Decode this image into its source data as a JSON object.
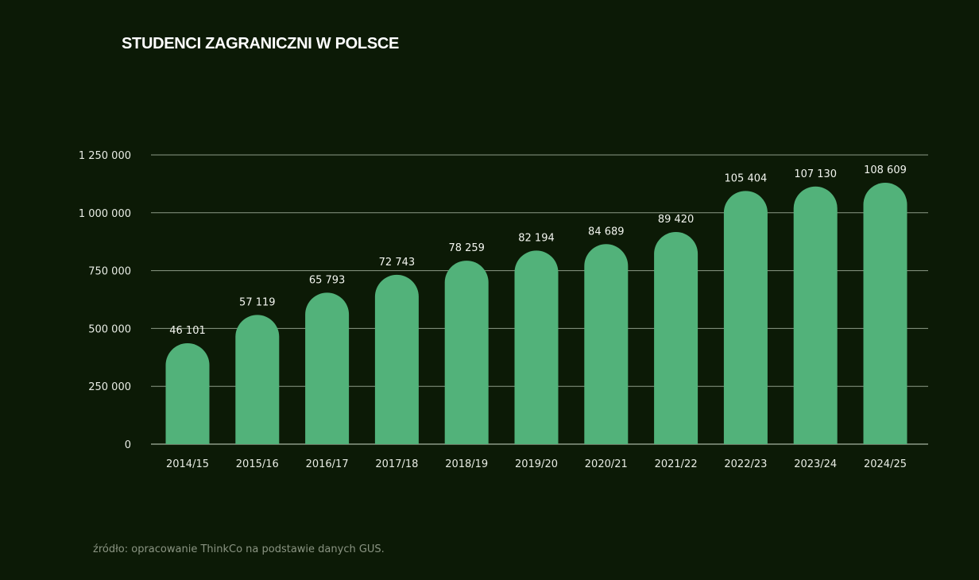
{
  "header": {
    "title": "STUDENCI ZAGRANICZNI W POLSCE"
  },
  "footer": {
    "source": "źródło: opracowanie ThinkCo na podstawie danych GUS."
  },
  "colors": {
    "background": "#0c1a06",
    "bar": "#52b27a",
    "grid": "#8c9a86",
    "text": "#e8ece4"
  },
  "chart_data": {
    "type": "bar",
    "title": "STUDENCI ZAGRANICZNI W POLSCE",
    "xlabel": "",
    "ylabel": "",
    "categories": [
      "2014/15",
      "2015/16",
      "2016/17",
      "2017/18",
      "2018/19",
      "2019/20",
      "2020/21",
      "2021/22",
      "2022/23",
      "2023/24",
      "2024/25"
    ],
    "values": [
      46101,
      57119,
      65793,
      72743,
      78259,
      82194,
      84689,
      89420,
      105404,
      107130,
      108609
    ],
    "value_labels": [
      "46 101",
      "57 119",
      "65 793",
      "72 743",
      "78 259",
      "82 194",
      "84 689",
      "89 420",
      "105 404",
      "107 130",
      "108 609"
    ],
    "yticks": [
      0,
      250000,
      500000,
      750000,
      1000000,
      1250000
    ],
    "ytick_labels": [
      "0",
      "250 000",
      "500 000",
      "750 000",
      "1 000 000",
      "1 250 000"
    ],
    "ylim": [
      0,
      1250000
    ],
    "grid": true,
    "legend": "none"
  }
}
